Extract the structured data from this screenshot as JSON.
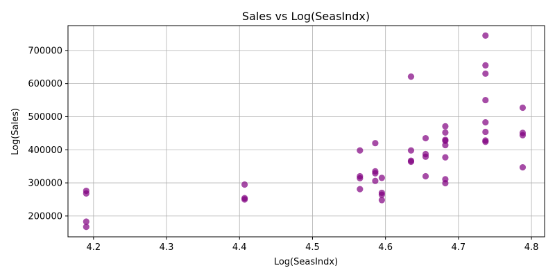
{
  "chart_data": {
    "type": "scatter",
    "title": "Sales vs Log(SeasIndx)",
    "xlabel": "Log(SeasIndx)",
    "ylabel": "Log(Sales)",
    "xlim": [
      4.165,
      4.818
    ],
    "ylim": [
      137000,
      775000
    ],
    "xticks": [
      4.2,
      4.3,
      4.4,
      4.5,
      4.6,
      4.7,
      4.8
    ],
    "xtick_labels": [
      "4.2",
      "4.3",
      "4.4",
      "4.5",
      "4.6",
      "4.7",
      "4.8"
    ],
    "yticks": [
      200000,
      300000,
      400000,
      500000,
      600000,
      700000
    ],
    "ytick_labels": [
      "200000",
      "300000",
      "400000",
      "500000",
      "600000",
      "700000"
    ],
    "grid": true,
    "marker_color": "#800080",
    "marker_alpha": 0.7,
    "points": [
      {
        "x": 4.19,
        "y": 167000
      },
      {
        "x": 4.19,
        "y": 183000
      },
      {
        "x": 4.19,
        "y": 268000
      },
      {
        "x": 4.19,
        "y": 276000
      },
      {
        "x": 4.407,
        "y": 250000
      },
      {
        "x": 4.407,
        "y": 254000
      },
      {
        "x": 4.407,
        "y": 295000
      },
      {
        "x": 4.565,
        "y": 281000
      },
      {
        "x": 4.565,
        "y": 314000
      },
      {
        "x": 4.565,
        "y": 320000
      },
      {
        "x": 4.565,
        "y": 398000
      },
      {
        "x": 4.586,
        "y": 306000
      },
      {
        "x": 4.586,
        "y": 329000
      },
      {
        "x": 4.586,
        "y": 335000
      },
      {
        "x": 4.586,
        "y": 420000
      },
      {
        "x": 4.595,
        "y": 248000
      },
      {
        "x": 4.595,
        "y": 264000
      },
      {
        "x": 4.595,
        "y": 270000
      },
      {
        "x": 4.595,
        "y": 315000
      },
      {
        "x": 4.635,
        "y": 364000
      },
      {
        "x": 4.635,
        "y": 367000
      },
      {
        "x": 4.635,
        "y": 398000
      },
      {
        "x": 4.635,
        "y": 621000
      },
      {
        "x": 4.655,
        "y": 320000
      },
      {
        "x": 4.655,
        "y": 379000
      },
      {
        "x": 4.655,
        "y": 387000
      },
      {
        "x": 4.655,
        "y": 435000
      },
      {
        "x": 4.682,
        "y": 299000
      },
      {
        "x": 4.682,
        "y": 311000
      },
      {
        "x": 4.682,
        "y": 377000
      },
      {
        "x": 4.682,
        "y": 414000
      },
      {
        "x": 4.682,
        "y": 427000
      },
      {
        "x": 4.682,
        "y": 430000
      },
      {
        "x": 4.682,
        "y": 452000
      },
      {
        "x": 4.682,
        "y": 471000
      },
      {
        "x": 4.737,
        "y": 424000
      },
      {
        "x": 4.737,
        "y": 428000
      },
      {
        "x": 4.737,
        "y": 454000
      },
      {
        "x": 4.737,
        "y": 483000
      },
      {
        "x": 4.737,
        "y": 550000
      },
      {
        "x": 4.737,
        "y": 630000
      },
      {
        "x": 4.737,
        "y": 655000
      },
      {
        "x": 4.737,
        "y": 745000
      },
      {
        "x": 4.788,
        "y": 347000
      },
      {
        "x": 4.788,
        "y": 444000
      },
      {
        "x": 4.788,
        "y": 451000
      },
      {
        "x": 4.788,
        "y": 527000
      }
    ]
  }
}
